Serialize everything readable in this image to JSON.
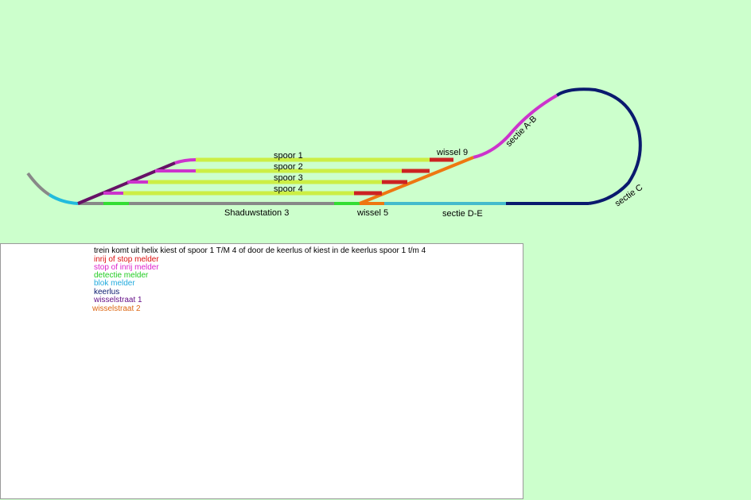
{
  "tracks": {
    "spoor": [
      "spoor 1",
      "spoor 2",
      "spoor 3",
      "spoor 4"
    ],
    "wissel_9": "wissel 9",
    "wissel_5": "wissel 5",
    "sectie_ab": "sectie A-B",
    "sectie_c": "sectie C",
    "sectie_de": "sectie D-E",
    "station": "Shaduwstation 3"
  },
  "legend": {
    "intro": "trein komt uit helix kiest of spoor 1 T/M 4 of door de keerlus of kiest in de keerlus spoor 1 t/m 4",
    "items": [
      "inrij of stop melder",
      "stop of inrij melder",
      "detectie melder",
      "blok melder",
      "keerlus",
      "wisselstraat 1",
      "wisselstraat 2"
    ]
  }
}
